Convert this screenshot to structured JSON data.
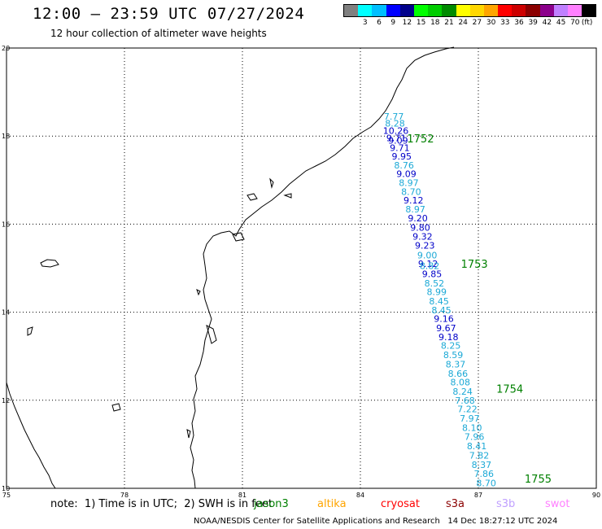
{
  "header": {
    "title": "12:00 — 23:59 UTC 07/27/2024",
    "subtitle": "12 hour collection of altimeter wave heights"
  },
  "color_scale": {
    "unit": "(ft)",
    "bins": [
      {
        "label": "",
        "color": "#808080"
      },
      {
        "label": "3",
        "color": "#00ffff"
      },
      {
        "label": "6",
        "color": "#00bfff"
      },
      {
        "label": "9",
        "color": "#0000ff"
      },
      {
        "label": "12",
        "color": "#00008b"
      },
      {
        "label": "15",
        "color": "#00ff00"
      },
      {
        "label": "18",
        "color": "#00cd00"
      },
      {
        "label": "21",
        "color": "#008b00"
      },
      {
        "label": "24",
        "color": "#ffff00"
      },
      {
        "label": "27",
        "color": "#ffd700"
      },
      {
        "label": "30",
        "color": "#ffa500"
      },
      {
        "label": "33",
        "color": "#ff0000"
      },
      {
        "label": "36",
        "color": "#cd0000"
      },
      {
        "label": "39",
        "color": "#8b0000"
      },
      {
        "label": "42",
        "color": "#8b008b"
      },
      {
        "label": "45",
        "color": "#c080ff"
      },
      {
        "label": "70",
        "color": "#ff80ff"
      },
      {
        "label": "",
        "color": "#000000"
      }
    ]
  },
  "map": {
    "lon_range": [
      75,
      90
    ],
    "lat_range": [
      10,
      20
    ],
    "lon_ticks": [
      "75",
      "78",
      "81",
      "84",
      "87",
      "90"
    ],
    "lat_ticks": [
      "20",
      "18",
      "16",
      "14",
      "12",
      "10"
    ],
    "coast_color": "#000000",
    "grid": "dotted"
  },
  "track": {
    "colors": {
      "light": "#1ca9d6",
      "dark": "#0000c8",
      "pass_label": "#008000"
    },
    "points": [
      {
        "lat": 18.45,
        "lon": 84.85,
        "v": "7.77",
        "c": "light"
      },
      {
        "lat": 18.29,
        "lon": 84.88,
        "v": "8.28",
        "c": "light"
      },
      {
        "lat": 18.12,
        "lon": 84.9,
        "v": "10.26",
        "c": "dark"
      },
      {
        "lat": 17.96,
        "lon": 84.91,
        "v": "9.71",
        "c": "dark"
      },
      {
        "lat": 17.9,
        "lon": 84.96,
        "v": "9.09",
        "c": "dark"
      },
      {
        "lat": 17.74,
        "lon": 85.0,
        "v": "9.71",
        "c": "dark"
      },
      {
        "lat": 17.54,
        "lon": 85.05,
        "v": "9.95",
        "c": "dark"
      },
      {
        "lat": 17.34,
        "lon": 85.11,
        "v": "8.76",
        "c": "light"
      },
      {
        "lat": 17.14,
        "lon": 85.17,
        "v": "9.09",
        "c": "dark"
      },
      {
        "lat": 16.94,
        "lon": 85.23,
        "v": "8.97",
        "c": "light"
      },
      {
        "lat": 16.74,
        "lon": 85.29,
        "v": "8.70",
        "c": "light"
      },
      {
        "lat": 16.54,
        "lon": 85.35,
        "v": "9.12",
        "c": "dark"
      },
      {
        "lat": 16.34,
        "lon": 85.4,
        "v": "8.97",
        "c": "light"
      },
      {
        "lat": 16.14,
        "lon": 85.46,
        "v": "9.20",
        "c": "dark"
      },
      {
        "lat": 15.92,
        "lon": 85.52,
        "v": "9.80",
        "c": "dark"
      },
      {
        "lat": 15.72,
        "lon": 85.58,
        "v": "9.32",
        "c": "dark"
      },
      {
        "lat": 15.52,
        "lon": 85.64,
        "v": "9.23",
        "c": "dark"
      },
      {
        "lat": 15.3,
        "lon": 85.7,
        "v": "9.00",
        "c": "light"
      },
      {
        "lat": 15.1,
        "lon": 85.72,
        "v": "9.12",
        "c": "dark"
      },
      {
        "lat": 15.06,
        "lon": 85.76,
        "v": "8.82",
        "c": "light"
      },
      {
        "lat": 14.87,
        "lon": 85.82,
        "v": "9.85",
        "c": "dark"
      },
      {
        "lat": 14.66,
        "lon": 85.88,
        "v": "8.52",
        "c": "light"
      },
      {
        "lat": 14.46,
        "lon": 85.94,
        "v": "8.99",
        "c": "light"
      },
      {
        "lat": 14.25,
        "lon": 86.0,
        "v": "8.45",
        "c": "light"
      },
      {
        "lat": 14.05,
        "lon": 86.06,
        "v": "8.45",
        "c": "light"
      },
      {
        "lat": 13.85,
        "lon": 86.12,
        "v": "9.16",
        "c": "dark"
      },
      {
        "lat": 13.64,
        "lon": 86.18,
        "v": "9.67",
        "c": "dark"
      },
      {
        "lat": 13.44,
        "lon": 86.24,
        "v": "9.18",
        "c": "dark"
      },
      {
        "lat": 13.24,
        "lon": 86.3,
        "v": "8.25",
        "c": "light"
      },
      {
        "lat": 13.03,
        "lon": 86.36,
        "v": "8.59",
        "c": "light"
      },
      {
        "lat": 12.82,
        "lon": 86.42,
        "v": "8.37",
        "c": "light"
      },
      {
        "lat": 12.61,
        "lon": 86.48,
        "v": "8.66",
        "c": "light"
      },
      {
        "lat": 12.41,
        "lon": 86.54,
        "v": "8.08",
        "c": "light"
      },
      {
        "lat": 12.2,
        "lon": 86.6,
        "v": "8.24",
        "c": "light"
      },
      {
        "lat": 12.0,
        "lon": 86.66,
        "v": "7.68",
        "c": "light"
      },
      {
        "lat": 11.8,
        "lon": 86.72,
        "v": "7.22",
        "c": "light"
      },
      {
        "lat": 11.59,
        "lon": 86.78,
        "v": "7.97",
        "c": "light"
      },
      {
        "lat": 11.38,
        "lon": 86.84,
        "v": "8.10",
        "c": "light"
      },
      {
        "lat": 11.17,
        "lon": 86.9,
        "v": "7.96",
        "c": "light"
      },
      {
        "lat": 10.96,
        "lon": 86.96,
        "v": "8.41",
        "c": "light"
      },
      {
        "lat": 10.75,
        "lon": 87.02,
        "v": "7.82",
        "c": "light"
      },
      {
        "lat": 10.54,
        "lon": 87.08,
        "v": "8.37",
        "c": "light"
      },
      {
        "lat": 10.33,
        "lon": 87.14,
        "v": "7.86",
        "c": "light"
      },
      {
        "lat": 10.12,
        "lon": 87.2,
        "v": "8.70",
        "c": "light"
      }
    ],
    "pass_labels": [
      {
        "lat": 17.93,
        "lon": 85.53,
        "text": "1752"
      },
      {
        "lat": 15.08,
        "lon": 86.9,
        "text": "1753"
      },
      {
        "lat": 12.25,
        "lon": 87.8,
        "text": "1754"
      },
      {
        "lat": 10.2,
        "lon": 88.52,
        "text": "1755"
      }
    ]
  },
  "footer": {
    "note": "note:  1) Time is in UTC;  2) SWH is in feet",
    "satellites": [
      {
        "name": "jason3",
        "color": "#008000"
      },
      {
        "name": "altika",
        "color": "#ffa500"
      },
      {
        "name": "cryosat",
        "color": "#ff0000"
      },
      {
        "name": "s3a",
        "color": "#8b0000"
      },
      {
        "name": "s3b",
        "color": "#c0a0ff"
      },
      {
        "name": "swot",
        "color": "#ff80ff"
      }
    ],
    "credit": "NOAA/NESDIS Center for Satellite Applications and Research   14 Dec 18:27:12 UTC 2024"
  }
}
